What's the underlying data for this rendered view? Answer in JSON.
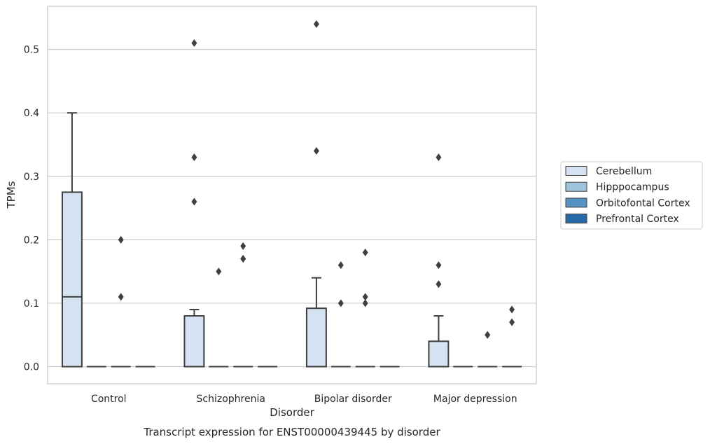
{
  "chart_data": {
    "type": "box",
    "title": "",
    "caption": "Transcript expression for ENST00000439445 by disorder",
    "xlabel": "Disorder",
    "ylabel": "TPMs",
    "ylim": [
      -0.027,
      0.568
    ],
    "yticks": [
      "0.0",
      "0.1",
      "0.2",
      "0.3",
      "0.4",
      "0.5"
    ],
    "categories": [
      "Control",
      "Schizophrenia",
      "Bipolar disorder",
      "Major depression"
    ],
    "grid": "horizontal",
    "legend_position": "right",
    "series": [
      {
        "name": "Cerebellum",
        "color": "#d4e2f1",
        "boxes": [
          {
            "q1": 0,
            "median": 0.11,
            "q3": 0.275,
            "whisker_low": 0,
            "whisker_high": 0.4,
            "outliers": []
          },
          {
            "q1": 0,
            "median": 0,
            "q3": 0.08,
            "whisker_low": 0,
            "whisker_high": 0.09,
            "outliers": [
              0.51,
              0.33,
              0.26
            ]
          },
          {
            "q1": 0,
            "median": 0,
            "q3": 0.092,
            "whisker_low": 0,
            "whisker_high": 0.14,
            "outliers": [
              0.54,
              0.34
            ]
          },
          {
            "q1": 0,
            "median": 0,
            "q3": 0.04,
            "whisker_low": 0,
            "whisker_high": 0.08,
            "outliers": [
              0.33,
              0.16,
              0.13
            ]
          }
        ]
      },
      {
        "name": "Hipppocampus",
        "color": "#9dc4dd",
        "boxes": [
          {
            "q1": 0,
            "median": 0,
            "q3": 0,
            "whisker_low": 0,
            "whisker_high": 0,
            "outliers": []
          },
          {
            "q1": 0,
            "median": 0,
            "q3": 0,
            "whisker_low": 0,
            "whisker_high": 0,
            "outliers": [
              0.15
            ]
          },
          {
            "q1": 0,
            "median": 0,
            "q3": 0,
            "whisker_low": 0,
            "whisker_high": 0,
            "outliers": [
              0.16,
              0.1
            ]
          },
          {
            "q1": 0,
            "median": 0,
            "q3": 0,
            "whisker_low": 0,
            "whisker_high": 0,
            "outliers": []
          }
        ]
      },
      {
        "name": "Orbitofontal Cortex",
        "color": "#5592c4",
        "boxes": [
          {
            "q1": 0,
            "median": 0,
            "q3": 0,
            "whisker_low": 0,
            "whisker_high": 0,
            "outliers": [
              0.2,
              0.11
            ]
          },
          {
            "q1": 0,
            "median": 0,
            "q3": 0,
            "whisker_low": 0,
            "whisker_high": 0,
            "outliers": [
              0.19,
              0.17,
              0.17
            ]
          },
          {
            "q1": 0,
            "median": 0,
            "q3": 0,
            "whisker_low": 0,
            "whisker_high": 0,
            "outliers": [
              0.18,
              0.11,
              0.1
            ]
          },
          {
            "q1": 0,
            "median": 0,
            "q3": 0,
            "whisker_low": 0,
            "whisker_high": 0,
            "outliers": [
              0.05,
              0.05
            ]
          }
        ]
      },
      {
        "name": "Prefrontal Cortex",
        "color": "#2869a8",
        "boxes": [
          {
            "q1": 0,
            "median": 0,
            "q3": 0,
            "whisker_low": 0,
            "whisker_high": 0,
            "outliers": []
          },
          {
            "q1": 0,
            "median": 0,
            "q3": 0,
            "whisker_low": 0,
            "whisker_high": 0,
            "outliers": []
          },
          {
            "q1": 0,
            "median": 0,
            "q3": 0,
            "whisker_low": 0,
            "whisker_high": 0,
            "outliers": []
          },
          {
            "q1": 0,
            "median": 0,
            "q3": 0,
            "whisker_low": 0,
            "whisker_high": 0,
            "outliers": [
              0.09,
              0.07
            ]
          }
        ]
      }
    ]
  }
}
